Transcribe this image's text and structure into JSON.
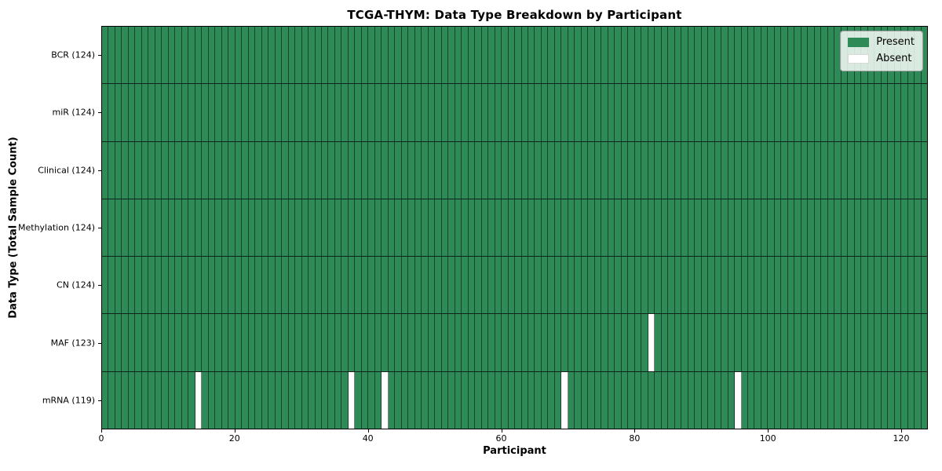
{
  "title": "TCGA-THYM: Data Type Breakdown by Participant",
  "axes": {
    "xlabel": "Participant",
    "ylabel": "Data Type (Total Sample Count)"
  },
  "legend": {
    "present_label": "Present",
    "absent_label": "Absent"
  },
  "colors": {
    "present": "#2e8b57",
    "absent": "#ffffff",
    "cell_edge": "rgba(0,0,0,0.5)",
    "row_separator": "#10231a",
    "spine": "#000000",
    "legend_border": "#9c9c9c"
  },
  "chart_data": {
    "type": "heatmap",
    "title": "TCGA-THYM: Data Type Breakdown by Participant",
    "xlabel": "Participant",
    "ylabel": "Data Type (Total Sample Count)",
    "xlim": [
      0,
      124
    ],
    "n_participants": 124,
    "x_ticks": [
      0,
      20,
      40,
      60,
      80,
      100,
      120
    ],
    "grid": false,
    "legend": [
      "Present",
      "Absent"
    ],
    "legend_position": "upper right",
    "rows": [
      {
        "data_type": "BCR",
        "label": "BCR (124)",
        "present_count": 124,
        "absent_participants": []
      },
      {
        "data_type": "miR",
        "label": "miR (124)",
        "present_count": 124,
        "absent_participants": []
      },
      {
        "data_type": "Clinical",
        "label": "Clinical (124)",
        "present_count": 124,
        "absent_participants": []
      },
      {
        "data_type": "Methylation",
        "label": "Methylation (124)",
        "present_count": 124,
        "absent_participants": []
      },
      {
        "data_type": "CN",
        "label": "CN (124)",
        "present_count": 124,
        "absent_participants": []
      },
      {
        "data_type": "MAF",
        "label": "MAF (123)",
        "present_count": 123,
        "absent_participants": [
          82
        ]
      },
      {
        "data_type": "mRNA",
        "label": "mRNA (119)",
        "present_count": 119,
        "absent_participants": [
          14,
          37,
          42,
          69,
          95
        ]
      }
    ]
  }
}
